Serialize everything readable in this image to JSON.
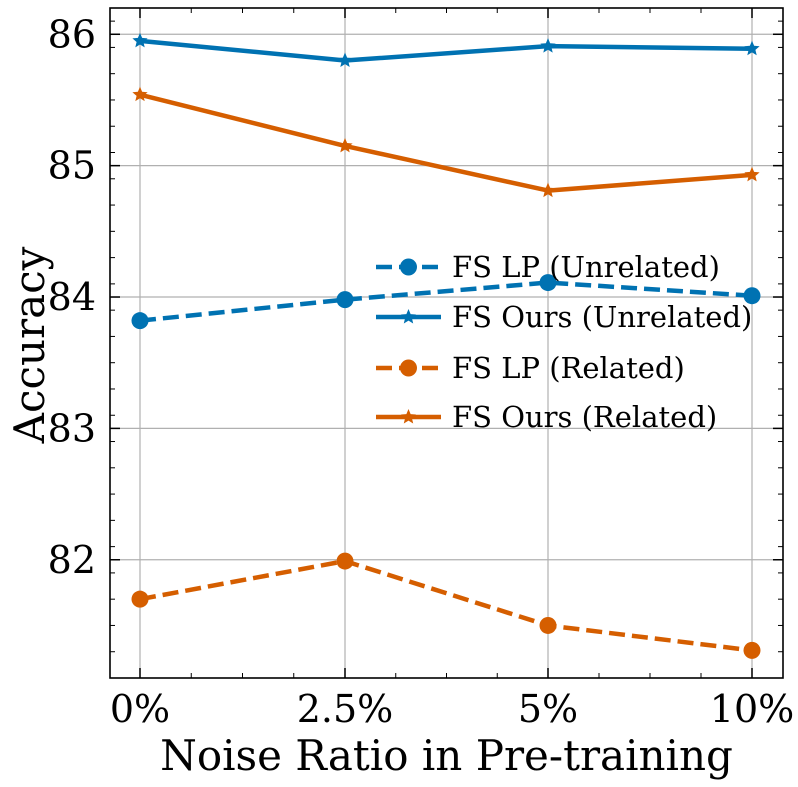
{
  "chart_data": {
    "type": "line",
    "title": "",
    "xlabel": "Noise Ratio in Pre-training",
    "ylabel": "Accuracy",
    "categories": [
      "0%",
      "2.5%",
      "5%",
      "10%"
    ],
    "y_ticks": [
      "82",
      "83",
      "84",
      "85",
      "86"
    ],
    "ylim": [
      81.1,
      86.2
    ],
    "grid": true,
    "legend_position": "center-right",
    "series": [
      {
        "name": "FS LP (Unrelated)",
        "values": [
          83.82,
          83.98,
          84.11,
          84.01
        ],
        "color": "#0072b2",
        "line_style": "dashed",
        "marker": "circle"
      },
      {
        "name": "FS Ours (Unrelated)",
        "values": [
          85.95,
          85.8,
          85.91,
          85.89
        ],
        "color": "#0072b2",
        "line_style": "solid",
        "marker": "star"
      },
      {
        "name": "FS LP (Related)",
        "values": [
          81.7,
          81.99,
          81.5,
          81.31
        ],
        "color": "#d55e00",
        "line_style": "dashed",
        "marker": "circle"
      },
      {
        "name": "FS Ours (Related)",
        "values": [
          85.54,
          85.15,
          84.81,
          84.93
        ],
        "color": "#d55e00",
        "line_style": "solid",
        "marker": "star"
      }
    ]
  }
}
